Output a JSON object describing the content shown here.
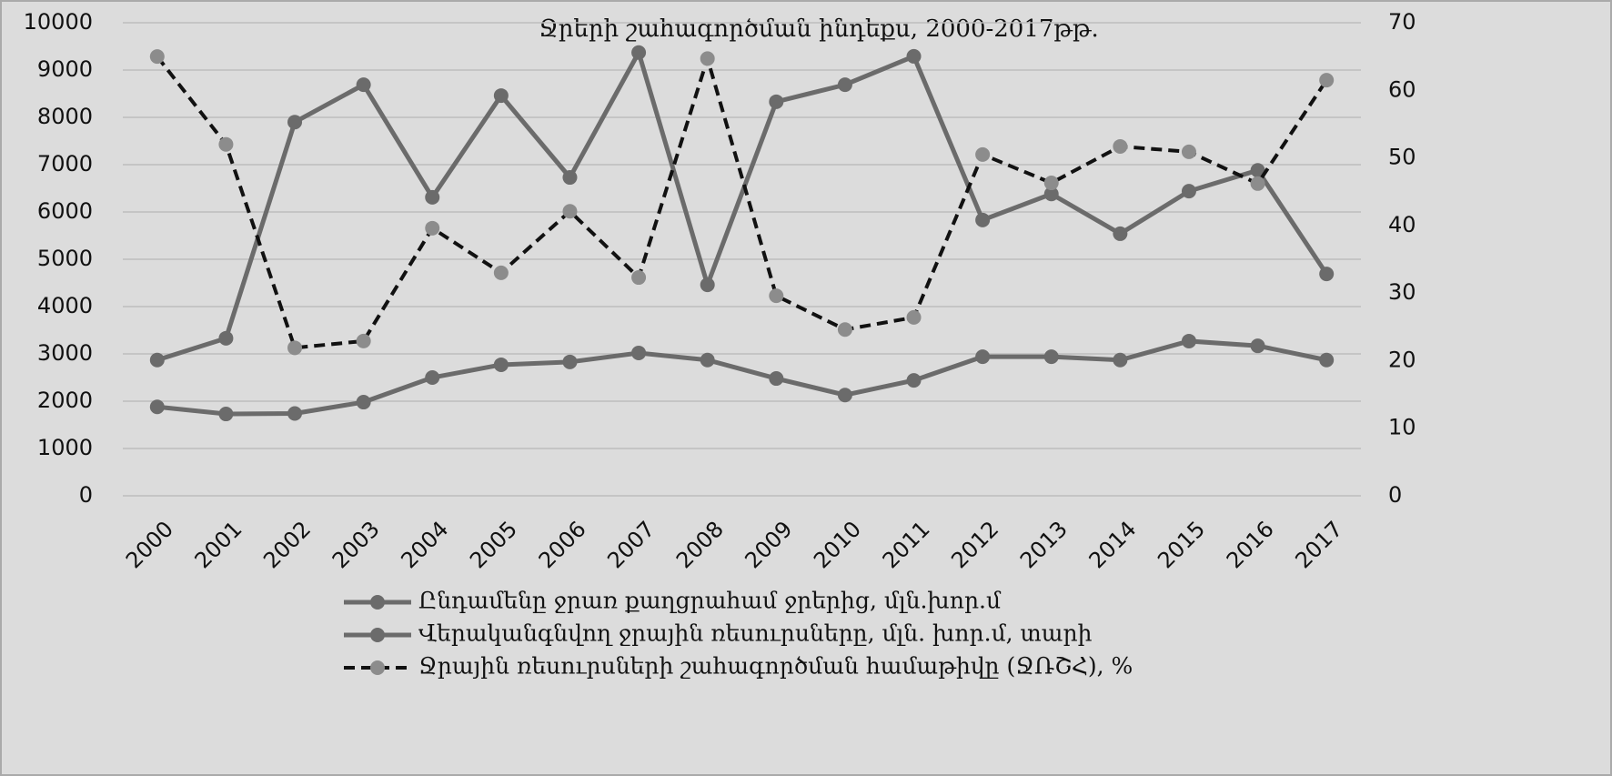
{
  "chart_data": {
    "type": "line",
    "title": "Ջրերի շահագործման ինդեքս, 2000-2017թթ.",
    "categories": [
      "2000",
      "2001",
      "2002",
      "2003",
      "2004",
      "2005",
      "2006",
      "2007",
      "2008",
      "2009",
      "2010",
      "2011",
      "2012",
      "2013",
      "2014",
      "2015",
      "2016",
      "2017"
    ],
    "series": [
      {
        "name": "Ընդամենը ջրառ քաղցրահամ ջրերից, մլն.խոր.մ",
        "color": "#6b6b6b",
        "marker_color": "#6b6b6b",
        "line_style": "solid",
        "values": [
          1880,
          1730,
          1740,
          1980,
          2500,
          2770,
          2830,
          3020,
          2870,
          2480,
          2130,
          2440,
          2940,
          2940,
          2870,
          3270,
          3170,
          2870
        ]
      },
      {
        "name": "Վերականգնվող ջրային ռեսուրսները, մլն. խոր.մ, տարի",
        "color": "#6b6b6b",
        "marker_color": "#6b6b6b",
        "line_style": "solid",
        "values": [
          2870,
          3330,
          7900,
          8690,
          6310,
          8460,
          6730,
          9370,
          4460,
          8330,
          8690,
          9290,
          5830,
          6380,
          5540,
          6440,
          6880,
          4690
        ]
      },
      {
        "name": "Ջրային ռեսուրսների շահագործման համաթիվը (ՋՌՇՀ), %",
        "color": "#111111",
        "marker_color": "#8c8c8c",
        "line_style": "dashed",
        "axis": "y2",
        "values": [
          65.0,
          52.0,
          21.9,
          22.9,
          39.6,
          33.0,
          42.1,
          32.3,
          64.7,
          29.6,
          24.6,
          26.4,
          50.5,
          46.3,
          51.7,
          50.9,
          46.2,
          61.5
        ]
      }
    ],
    "ylim": [
      0,
      10000
    ],
    "yticks": [
      0,
      1000,
      2000,
      3000,
      4000,
      5000,
      6000,
      7000,
      8000,
      9000,
      10000
    ],
    "y2lim": [
      0,
      70
    ],
    "y2ticks": [
      0,
      10,
      20,
      30,
      40,
      50,
      60,
      70
    ],
    "grid": true,
    "legend": "bottom"
  }
}
